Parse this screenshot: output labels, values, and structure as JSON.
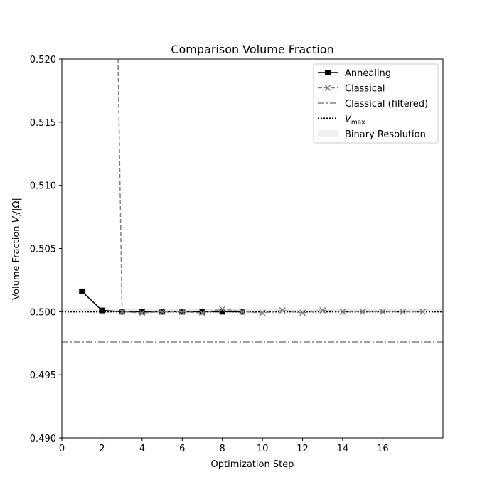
{
  "chart_data": {
    "type": "line",
    "title": "Comparison Volume Fraction",
    "xlabel": "Optimization Step",
    "ylabel": "Volume Fraction V_f/|Ω|",
    "xlim": [
      0,
      19
    ],
    "ylim": [
      0.49,
      0.52
    ],
    "xticks": [
      0,
      2,
      4,
      6,
      8,
      10,
      12,
      14,
      16
    ],
    "xtick_labels": [
      "0",
      "2",
      "4",
      "6",
      "8",
      "10",
      "12",
      "14",
      "16"
    ],
    "yticks": [
      0.49,
      0.495,
      0.5,
      0.505,
      0.51,
      0.515,
      0.52
    ],
    "ytick_labels": [
      "0.490",
      "0.495",
      "0.500",
      "0.505",
      "0.510",
      "0.515",
      "0.520"
    ],
    "grid": false,
    "legend_position": "top-right",
    "series": [
      {
        "name": "Annealing",
        "style": "solid",
        "marker": "square",
        "color": "#000000",
        "x": [
          1,
          2,
          3,
          4,
          5,
          6,
          7,
          8,
          9
        ],
        "y": [
          0.5016,
          0.5001,
          0.5,
          0.5,
          0.5,
          0.5,
          0.5,
          0.5,
          0.5
        ]
      },
      {
        "name": "Classical",
        "style": "dashed",
        "marker": "x",
        "color": "#808080",
        "x": [
          2.8,
          3,
          4,
          5,
          6,
          7,
          8,
          9,
          10,
          11,
          12,
          13,
          14,
          15,
          16,
          17,
          18
        ],
        "y": [
          0.52,
          0.5,
          0.4999,
          0.5,
          0.5,
          0.4999,
          0.5002,
          0.5,
          0.4999,
          0.5001,
          0.4999,
          0.5001,
          0.5,
          0.5,
          0.5,
          0.5,
          0.5
        ]
      },
      {
        "name": "Classical (filtered)",
        "style": "dashdot",
        "color": "#808080",
        "y": 0.4976
      },
      {
        "name": "V_max",
        "style": "dotted",
        "color": "#000000",
        "y": 0.5
      },
      {
        "name": "Binary Resolution",
        "style": "band",
        "color": "#e8e8e8",
        "y_range": [
          0.49995,
          0.50025
        ]
      }
    ],
    "legend": [
      {
        "label": "Annealing"
      },
      {
        "label": "Classical"
      },
      {
        "label": "Classical (filtered)"
      },
      {
        "label": "V",
        "sub": "max"
      },
      {
        "label": "Binary Resolution"
      }
    ]
  }
}
